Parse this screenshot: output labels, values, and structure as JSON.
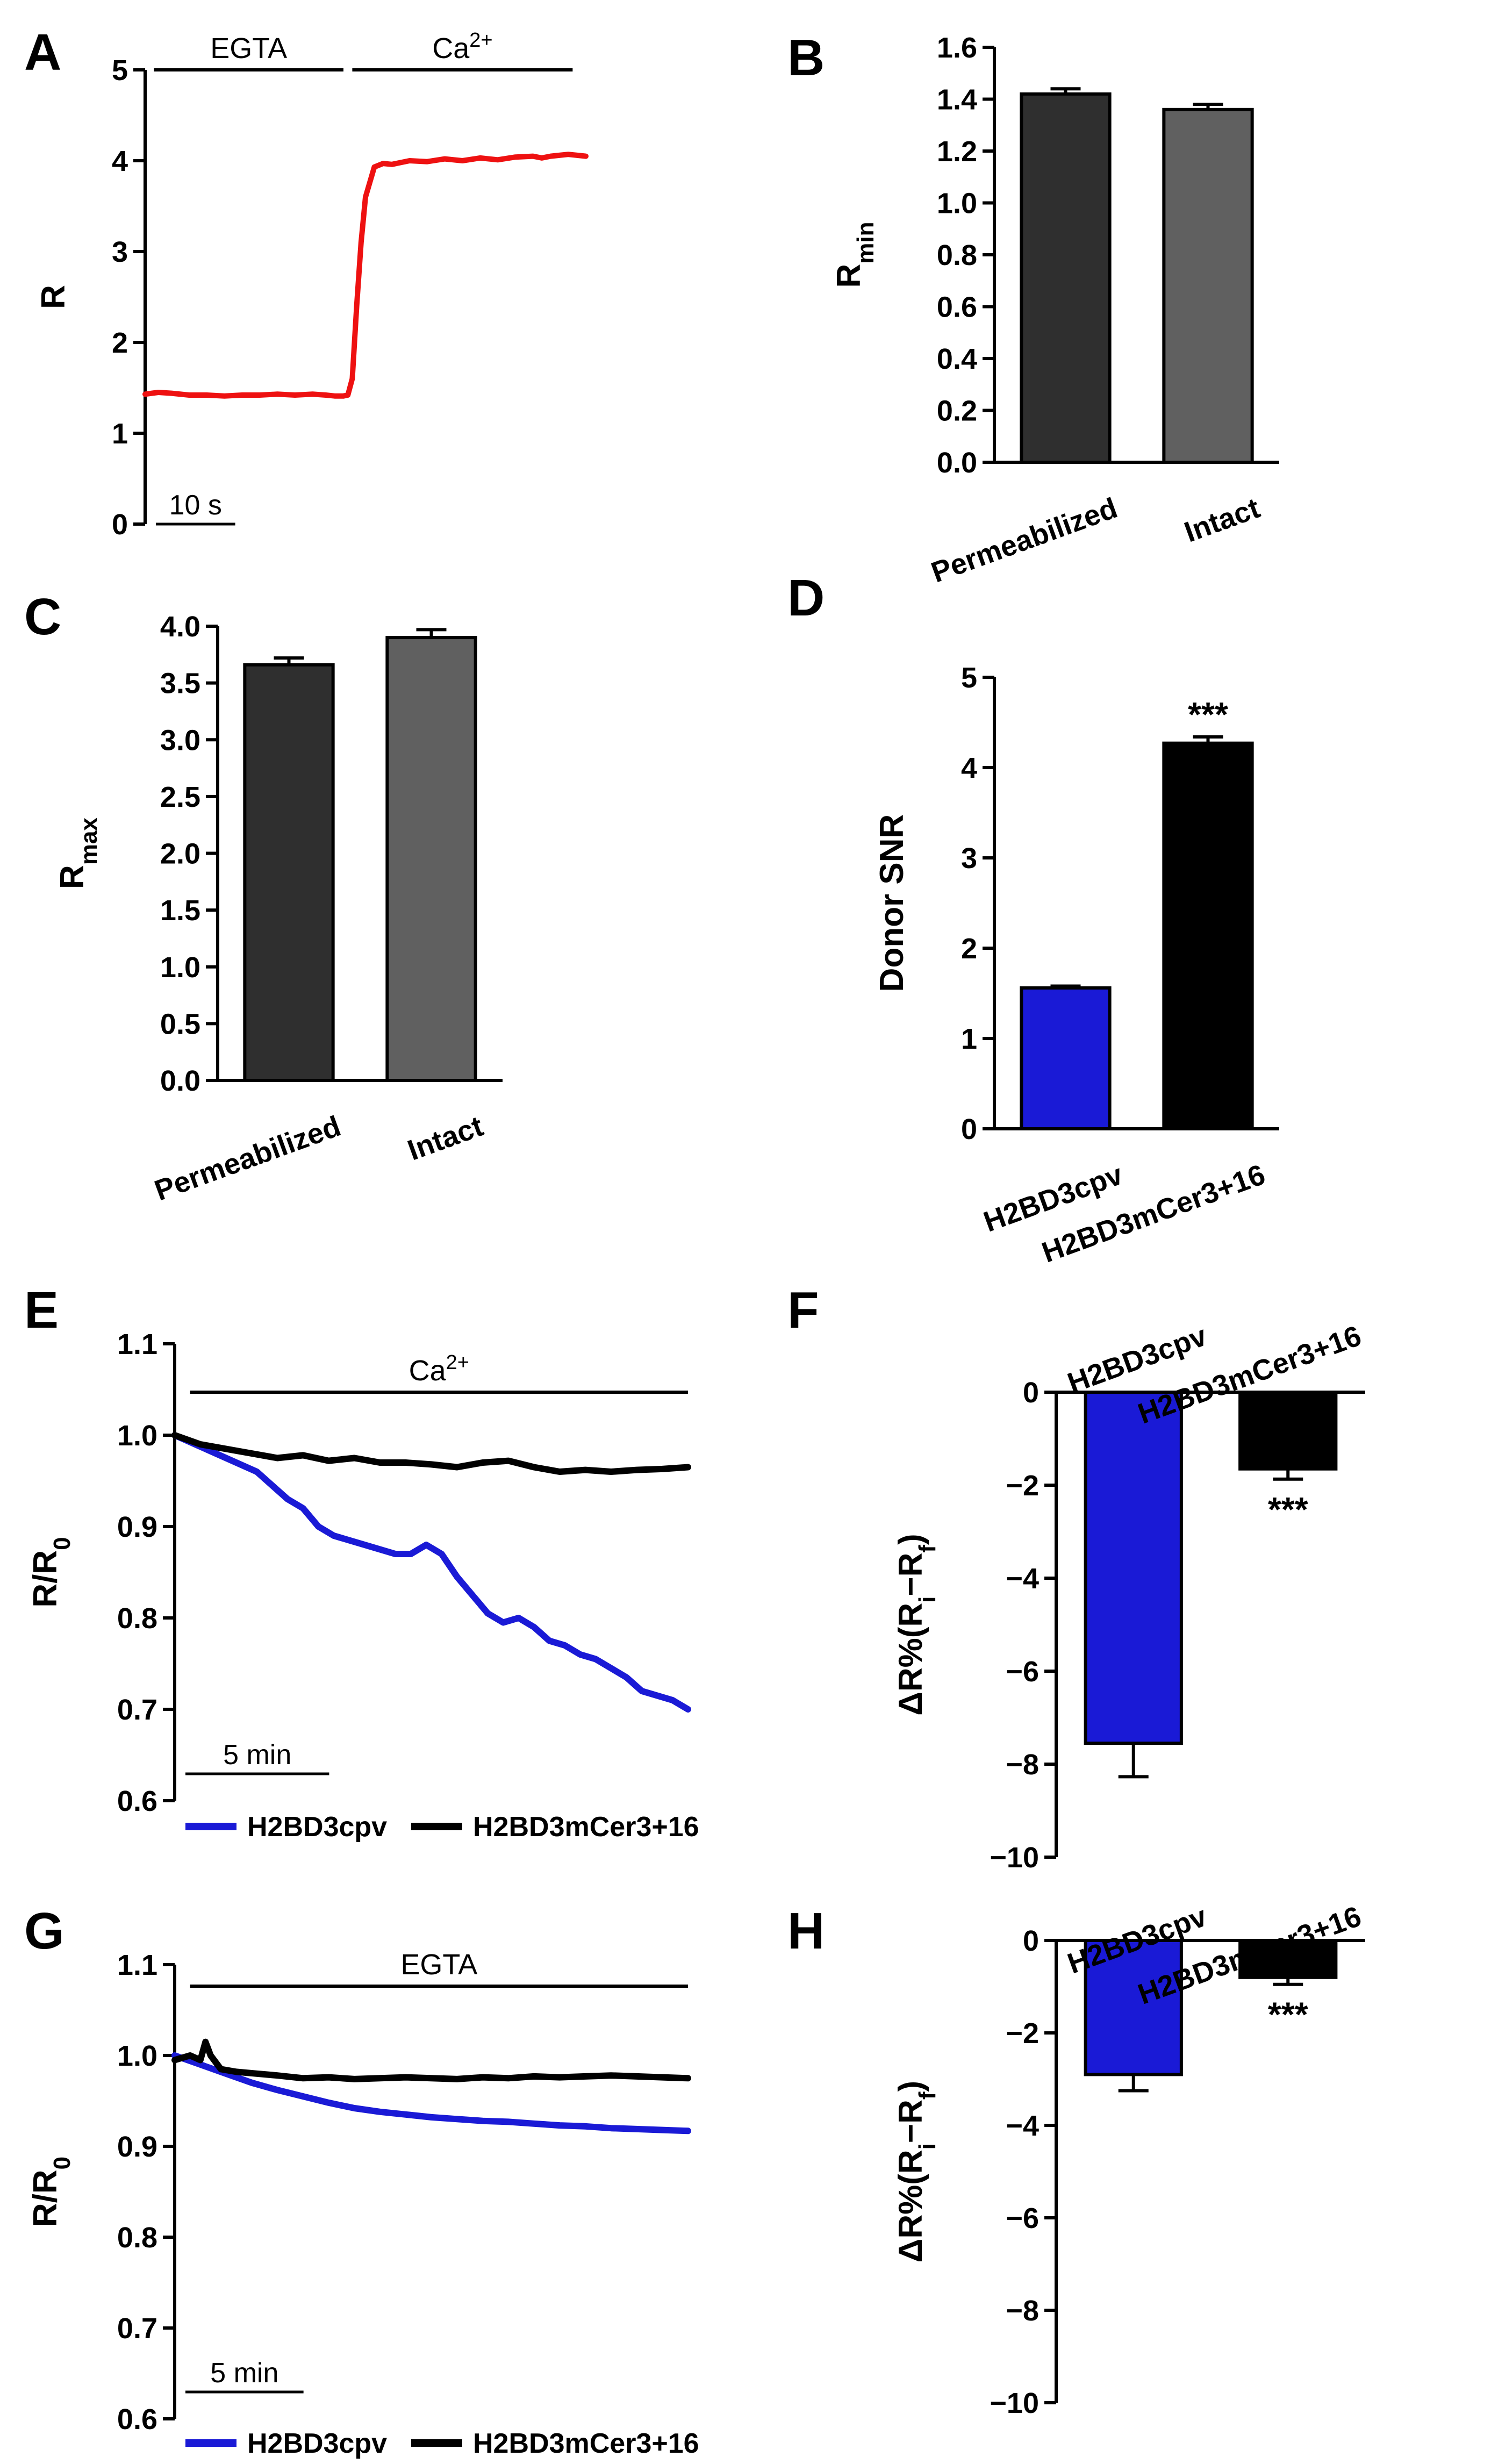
{
  "figure": {
    "panels": {
      "A": "A",
      "B": "B",
      "C": "C",
      "D": "D",
      "E": "E",
      "F": "F",
      "G": "G",
      "H": "H"
    }
  },
  "colors": {
    "red": "#ee1111",
    "blue": "#1a1ad6",
    "black": "#000000",
    "dark_gray": "#2f2f2f",
    "mid_gray": "#606060"
  },
  "chart_data": [
    {
      "id": "A",
      "type": "line",
      "ylabel": "R",
      "yticks": [
        "0",
        "1",
        "2",
        "3",
        "4",
        "5"
      ],
      "ylim": [
        0,
        5
      ],
      "xlim": [
        0,
        100
      ],
      "conditions": [
        {
          "label": "EGTA",
          "x": [
            2,
            45
          ]
        },
        {
          "label": "Ca²⁺",
          "x": [
            47,
            97
          ]
        }
      ],
      "scale_bar": {
        "label": "10 s",
        "length": 18
      },
      "series": [
        {
          "name": "R",
          "color": "#ee1111",
          "x": [
            0,
            3,
            6,
            10,
            14,
            18,
            22,
            26,
            30,
            34,
            38,
            41,
            43,
            44,
            45,
            46,
            47,
            48,
            49,
            50,
            52,
            54,
            56,
            58,
            60,
            64,
            68,
            72,
            76,
            80,
            84,
            88,
            90,
            92,
            94,
            96,
            98,
            100
          ],
          "y": [
            1.43,
            1.45,
            1.44,
            1.42,
            1.42,
            1.41,
            1.42,
            1.42,
            1.43,
            1.42,
            1.43,
            1.42,
            1.41,
            1.41,
            1.41,
            1.42,
            1.6,
            2.4,
            3.1,
            3.6,
            3.93,
            3.97,
            3.96,
            3.98,
            4.0,
            3.99,
            4.02,
            4.0,
            4.03,
            4.01,
            4.04,
            4.05,
            4.03,
            4.05,
            4.06,
            4.07,
            4.06,
            4.05
          ]
        }
      ]
    },
    {
      "id": "B",
      "type": "bar",
      "ylabel": "R",
      "ylabel_sub": "min",
      "yticks": [
        "0.0",
        "0.2",
        "0.4",
        "0.6",
        "0.8",
        "1.0",
        "1.2",
        "1.4",
        "1.6"
      ],
      "ylim": [
        0,
        1.6
      ],
      "categories": [
        "Permeabilized",
        "Intact"
      ],
      "values": [
        1.42,
        1.36
      ],
      "errors": [
        0.02,
        0.02
      ],
      "bar_colors": [
        "#2f2f2f",
        "#606060"
      ],
      "annotations": [
        "",
        ""
      ]
    },
    {
      "id": "C",
      "type": "bar",
      "ylabel": "R",
      "ylabel_sub": "max",
      "yticks": [
        "0.0",
        "0.5",
        "1.0",
        "1.5",
        "2.0",
        "2.5",
        "3.0",
        "3.5",
        "4.0"
      ],
      "ylim": [
        0,
        4.0
      ],
      "categories": [
        "Permeabilized",
        "Intact"
      ],
      "values": [
        3.66,
        3.9
      ],
      "errors": [
        0.06,
        0.07
      ],
      "bar_colors": [
        "#2f2f2f",
        "#606060"
      ],
      "annotations": [
        "",
        ""
      ]
    },
    {
      "id": "D",
      "type": "bar",
      "ylabel": "Donor SNR",
      "ylabel_sub": "",
      "yticks": [
        "0",
        "1",
        "2",
        "3",
        "4",
        "5"
      ],
      "ylim": [
        0,
        5
      ],
      "categories": [
        "H2BD3cpv",
        "H2BD3mCer3+16"
      ],
      "values": [
        1.56,
        4.27
      ],
      "errors": [
        0.02,
        0.07
      ],
      "bar_colors": [
        "#1a1ad6",
        "#000000"
      ],
      "annotations": [
        "",
        "***"
      ]
    },
    {
      "id": "E",
      "type": "line",
      "ylabel": "R/R",
      "ylabel_sub": "0",
      "yticks": [
        "0.6",
        "0.7",
        "0.8",
        "0.9",
        "1.0",
        "1.1"
      ],
      "ylim": [
        0.6,
        1.1
      ],
      "xlim": [
        0,
        100
      ],
      "conditions": [
        {
          "label": "Ca²⁺",
          "x": [
            3,
            100
          ]
        }
      ],
      "scale_bar": {
        "label": "5 min",
        "length": 28
      },
      "legend": [
        "H2BD3cpv",
        "H2BD3mCer3+16"
      ],
      "series": [
        {
          "name": "H2BD3cpv",
          "color": "#1a1ad6",
          "x": [
            0,
            4,
            8,
            12,
            16,
            19,
            22,
            25,
            28,
            31,
            34,
            37,
            40,
            43,
            46,
            49,
            52,
            55,
            58,
            61,
            64,
            67,
            70,
            73,
            76,
            79,
            82,
            85,
            88,
            91,
            94,
            97,
            100
          ],
          "y": [
            1.0,
            0.99,
            0.98,
            0.97,
            0.96,
            0.945,
            0.93,
            0.92,
            0.9,
            0.89,
            0.885,
            0.88,
            0.875,
            0.87,
            0.87,
            0.88,
            0.87,
            0.845,
            0.825,
            0.805,
            0.795,
            0.8,
            0.79,
            0.775,
            0.77,
            0.76,
            0.755,
            0.745,
            0.735,
            0.72,
            0.715,
            0.71,
            0.7
          ]
        },
        {
          "name": "H2BD3mCer3+16",
          "color": "#000000",
          "x": [
            0,
            5,
            10,
            15,
            20,
            25,
            30,
            35,
            40,
            45,
            50,
            55,
            60,
            65,
            70,
            75,
            80,
            85,
            90,
            95,
            100
          ],
          "y": [
            1.0,
            0.99,
            0.985,
            0.98,
            0.975,
            0.978,
            0.972,
            0.975,
            0.97,
            0.97,
            0.968,
            0.965,
            0.97,
            0.972,
            0.965,
            0.96,
            0.962,
            0.96,
            0.962,
            0.963,
            0.965
          ]
        }
      ]
    },
    {
      "id": "F",
      "type": "bar",
      "ylabel": "ΔR%(R",
      "ylabel_sub": "i",
      "ylabel_mid": "−R",
      "ylabel_sub2": "f",
      "ylabel_end": ")",
      "yticks": [
        "−10",
        "−8",
        "−6",
        "−4",
        "−2",
        "0"
      ],
      "ylim": [
        -10,
        0
      ],
      "categories": [
        "H2BD3cpv",
        "H2BD3mCer3+16"
      ],
      "values": [
        -7.55,
        -1.65
      ],
      "errors": [
        0.72,
        0.22
      ],
      "bar_colors": [
        "#1a1ad6",
        "#000000"
      ],
      "annotations": [
        "",
        "***"
      ]
    },
    {
      "id": "G",
      "type": "line",
      "ylabel": "R/R",
      "ylabel_sub": "0",
      "yticks": [
        "0.6",
        "0.7",
        "0.8",
        "0.9",
        "1.0",
        "1.1"
      ],
      "ylim": [
        0.6,
        1.1
      ],
      "xlim": [
        0,
        100
      ],
      "conditions": [
        {
          "label": "EGTA",
          "x": [
            3,
            100
          ]
        }
      ],
      "scale_bar": {
        "label": "5 min",
        "length": 23
      },
      "legend": [
        "H2BD3cpv",
        "H2BD3mCer3+16"
      ],
      "series": [
        {
          "name": "H2BD3cpv",
          "color": "#1a1ad6",
          "x": [
            0,
            5,
            10,
            15,
            20,
            25,
            30,
            35,
            40,
            45,
            50,
            55,
            60,
            65,
            70,
            75,
            80,
            85,
            90,
            95,
            100
          ],
          "y": [
            1.0,
            0.99,
            0.98,
            0.97,
            0.962,
            0.955,
            0.948,
            0.942,
            0.938,
            0.935,
            0.932,
            0.93,
            0.928,
            0.927,
            0.925,
            0.923,
            0.922,
            0.92,
            0.919,
            0.918,
            0.917
          ]
        },
        {
          "name": "H2BD3mCer3+16",
          "color": "#000000",
          "x": [
            0,
            3,
            5,
            6,
            7,
            9,
            12,
            16,
            20,
            25,
            30,
            35,
            40,
            45,
            50,
            55,
            60,
            65,
            70,
            75,
            80,
            85,
            90,
            95,
            100
          ],
          "y": [
            0.995,
            1.0,
            0.995,
            1.015,
            1.0,
            0.985,
            0.982,
            0.98,
            0.978,
            0.975,
            0.976,
            0.974,
            0.975,
            0.976,
            0.975,
            0.974,
            0.976,
            0.975,
            0.977,
            0.976,
            0.977,
            0.978,
            0.977,
            0.976,
            0.975
          ]
        }
      ]
    },
    {
      "id": "H",
      "type": "bar",
      "ylabel": "ΔR%(R",
      "ylabel_sub": "i",
      "ylabel_mid": "−R",
      "ylabel_sub2": "f",
      "ylabel_end": ")",
      "yticks": [
        "−10",
        "−8",
        "−6",
        "−4",
        "−2",
        "0"
      ],
      "ylim": [
        -10,
        0
      ],
      "categories": [
        "H2BD3cpv",
        "H2BD3mCer3+16"
      ],
      "values": [
        -2.9,
        -0.8
      ],
      "errors": [
        0.35,
        0.15
      ],
      "bar_colors": [
        "#1a1ad6",
        "#000000"
      ],
      "annotations": [
        "",
        "***"
      ]
    }
  ]
}
